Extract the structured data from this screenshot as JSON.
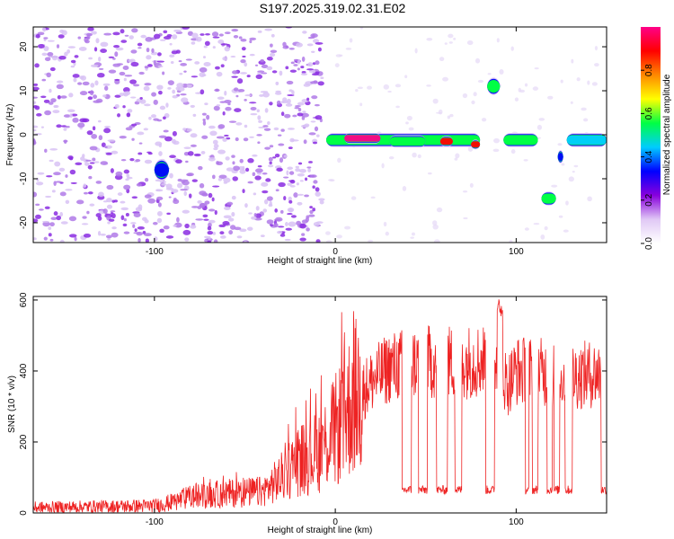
{
  "title": "S197.2025.319.02.31.E02",
  "chart_data": [
    {
      "type": "heatmap",
      "name": "spectrogram",
      "xlabel": "Height of straight line (km)",
      "ylabel": "Frequency (Hz)",
      "xlim": [
        -167,
        150
      ],
      "ylim": [
        -24.5,
        24.5
      ],
      "xticks": [
        -100,
        0,
        100
      ],
      "yticks": [
        -20,
        -10,
        0,
        10,
        20
      ],
      "colorbar": {
        "label": "Normalized spectral amplitude",
        "range": [
          0,
          1
        ],
        "ticks": [
          0.0,
          0.2,
          0.4,
          0.6,
          0.8
        ],
        "tick_labels": [
          "0.0",
          "0.2",
          "0.4",
          "0.6",
          "0.8"
        ],
        "colors": [
          "#ffffff",
          "#e0c8f5",
          "#8800dd",
          "#0000ff",
          "#00ccff",
          "#00ff44",
          "#ffff00",
          "#ff8800",
          "#ff0000",
          "#ff0088"
        ]
      },
      "noise_region": {
        "x": [
          -167,
          -7
        ],
        "level": 0.15
      },
      "features": [
        {
          "x0": -5,
          "x1": 80,
          "freq": -1.2,
          "amp": 0.55,
          "width": 1.6
        },
        {
          "x0": 5,
          "x1": 25,
          "freq": -0.8,
          "amp": 0.95,
          "width": 1.2
        },
        {
          "x0": 30,
          "x1": 50,
          "freq": -1.5,
          "amp": 0.6,
          "width": 1.4
        },
        {
          "x0": 58,
          "x1": 65,
          "freq": -1.5,
          "amp": 0.85,
          "width": 1.2
        },
        {
          "x0": 75,
          "x1": 80,
          "freq": -2.2,
          "amp": 0.85,
          "width": 1.1
        },
        {
          "x0": 84,
          "x1": 91,
          "freq": 11,
          "amp": 0.5,
          "width": 2.0
        },
        {
          "x0": 93,
          "x1": 112,
          "freq": -1.2,
          "amp": 0.5,
          "width": 1.6
        },
        {
          "x0": 114,
          "x1": 122,
          "freq": -14.5,
          "amp": 0.5,
          "width": 1.6
        },
        {
          "x0": 123,
          "x1": 126,
          "freq": -5,
          "amp": 0.35,
          "width": 1.5
        },
        {
          "x0": 128,
          "x1": 150,
          "freq": -1.2,
          "amp": 0.45,
          "width": 1.6
        },
        {
          "x0": -100,
          "x1": -92,
          "freq": -8,
          "amp": 0.3,
          "width": 2.5
        }
      ]
    },
    {
      "type": "line",
      "name": "snr",
      "xlabel": "Height of straight line (km)",
      "ylabel": "SNR (10 * v/v)",
      "xlim": [
        -167,
        150
      ],
      "ylim": [
        0,
        610
      ],
      "xticks": [
        -100,
        0,
        100
      ],
      "yticks": [
        0,
        200,
        400,
        600
      ],
      "color": "#ee2222",
      "trend": [
        [
          -167,
          15
        ],
        [
          -100,
          20
        ],
        [
          -90,
          30
        ],
        [
          -80,
          45
        ],
        [
          -60,
          55
        ],
        [
          -40,
          60
        ],
        [
          -30,
          100
        ],
        [
          -20,
          150
        ],
        [
          -10,
          170
        ],
        [
          0,
          230
        ],
        [
          10,
          320
        ],
        [
          20,
          370
        ],
        [
          30,
          410
        ],
        [
          40,
          420
        ],
        [
          50,
          425
        ],
        [
          60,
          425
        ],
        [
          70,
          425
        ],
        [
          80,
          430
        ],
        [
          90,
          440
        ],
        [
          95,
          360
        ],
        [
          100,
          400
        ],
        [
          110,
          400
        ],
        [
          120,
          390
        ],
        [
          130,
          385
        ],
        [
          140,
          390
        ],
        [
          150,
          395
        ]
      ],
      "dropouts": [
        [
          37,
          42
        ],
        [
          46,
          51
        ],
        [
          56,
          62
        ],
        [
          66,
          70
        ],
        [
          83,
          88
        ],
        [
          105,
          107
        ],
        [
          109,
          112
        ],
        [
          117,
          120
        ],
        [
          121,
          124
        ],
        [
          127,
          131
        ],
        [
          147,
          150
        ]
      ],
      "dropout_level": 65,
      "peak": {
        "x": 91,
        "y": 605
      }
    }
  ]
}
